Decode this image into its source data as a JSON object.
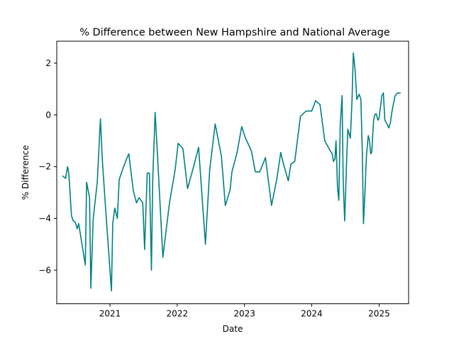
{
  "chart_data": {
    "type": "line",
    "title": "% Difference between New Hampshire and National Average",
    "xlabel": "Date",
    "ylabel": "% Difference",
    "x_ticks": [
      "2021",
      "2022",
      "2023",
      "2024",
      "2025"
    ],
    "y_ticks": [
      -6,
      -4,
      -2,
      0,
      2
    ],
    "xlim": [
      "2020-03-18",
      "2025-06-10"
    ],
    "ylim": [
      -7.3,
      2.85
    ],
    "grid": false,
    "legend": "none",
    "line_color": "#008080",
    "series": [
      {
        "x": [
          "2020-04-18",
          "2020-05-05",
          "2020-05-16",
          "2020-05-23",
          "2020-06-06",
          "2020-06-16",
          "2020-06-27",
          "2020-07-07",
          "2020-07-15",
          "2020-08-20",
          "2020-08-27",
          "2020-09-12",
          "2020-09-19",
          "2020-10-02",
          "2020-10-13",
          "2020-10-24",
          "2020-11-10",
          "2020-11-21",
          "2020-12-09",
          "2021-01-09",
          "2021-01-16",
          "2021-01-27",
          "2021-02-10",
          "2021-02-20",
          "2021-03-06",
          "2021-04-01",
          "2021-04-13",
          "2021-05-08",
          "2021-05-25",
          "2021-06-08",
          "2021-06-28",
          "2021-07-08",
          "2021-07-22",
          "2021-08-03",
          "2021-08-14",
          "2021-08-21",
          "2021-09-03",
          "2021-09-14",
          "2021-10-15",
          "2021-11-20",
          "2021-12-21",
          "2022-01-06",
          "2022-02-01",
          "2022-02-26",
          "2022-03-27",
          "2022-04-27",
          "2022-06-03",
          "2022-06-26",
          "2022-07-26",
          "2022-08-29",
          "2022-09-19",
          "2022-10-15",
          "2022-10-25",
          "2022-11-22",
          "2022-12-17",
          "2023-01-04",
          "2023-02-08",
          "2023-03-01",
          "2023-03-25",
          "2023-04-25",
          "2023-05-28",
          "2023-06-25",
          "2023-07-17",
          "2023-07-30",
          "2023-08-27",
          "2023-09-10",
          "2023-10-01",
          "2023-11-01",
          "2023-12-01",
          "2024-01-01",
          "2024-01-22",
          "2024-02-15",
          "2024-03-12",
          "2024-04-12",
          "2024-04-21",
          "2024-04-28",
          "2024-05-06",
          "2024-05-12",
          "2024-05-20",
          "2024-05-27",
          "2024-06-04",
          "2024-06-14",
          "2024-06-20",
          "2024-06-28",
          "2024-07-08",
          "2024-07-15",
          "2024-07-21",
          "2024-07-29",
          "2024-08-07",
          "2024-08-14",
          "2024-08-24",
          "2024-09-02",
          "2024-09-15",
          "2024-09-24",
          "2024-10-02",
          "2024-10-08",
          "2024-10-15",
          "2024-10-24",
          "2024-11-03",
          "2024-11-10",
          "2024-11-16",
          "2024-11-22",
          "2024-12-02",
          "2024-12-08",
          "2024-12-16",
          "2024-12-25",
          "2024-12-31",
          "2025-01-08",
          "2025-01-16",
          "2025-01-24",
          "2025-02-01",
          "2025-02-09",
          "2025-02-16",
          "2025-02-23",
          "2025-03-03",
          "2025-03-11",
          "2025-03-19",
          "2025-03-27",
          "2025-04-04",
          "2025-04-12",
          "2025-04-20",
          "2025-04-28"
        ],
        "y": [
          -2.35,
          -2.45,
          -2.0,
          -2.3,
          -3.9,
          -4.1,
          -4.15,
          -4.4,
          -4.2,
          -5.8,
          -2.6,
          -3.2,
          -6.7,
          -4.0,
          -3.3,
          -2.6,
          -0.15,
          -1.8,
          -3.7,
          -6.8,
          -4.2,
          -3.6,
          -4.0,
          -2.5,
          -2.2,
          -1.7,
          -1.5,
          -2.95,
          -3.4,
          -3.2,
          -3.4,
          -5.2,
          -2.25,
          -2.25,
          -6.0,
          -2.5,
          0.1,
          -1.3,
          -5.5,
          -3.4,
          -2.1,
          -1.1,
          -1.3,
          -2.85,
          -2.1,
          -1.25,
          -5.0,
          -2.15,
          -0.35,
          -1.6,
          -3.5,
          -2.9,
          -2.2,
          -1.45,
          -0.45,
          -0.85,
          -1.4,
          -2.2,
          -2.2,
          -1.65,
          -3.5,
          -2.5,
          -1.45,
          -1.85,
          -2.55,
          -1.9,
          -1.8,
          -0.05,
          0.15,
          0.15,
          0.55,
          0.4,
          -1.0,
          -1.4,
          -1.5,
          -1.8,
          -1.7,
          -1.0,
          -2.8,
          -3.3,
          -0.4,
          0.75,
          -2.6,
          -4.1,
          -1.9,
          -0.55,
          -0.7,
          -0.9,
          0.6,
          2.4,
          1.7,
          0.6,
          0.8,
          0.6,
          -1.5,
          -4.2,
          -3.2,
          -1.6,
          -0.8,
          -1.0,
          -1.5,
          -1.45,
          -0.2,
          0.0,
          0.05,
          -0.2,
          -0.15,
          0.3,
          0.75,
          0.85,
          -0.2,
          -0.3,
          -0.4,
          -0.5,
          -0.3,
          0.1,
          0.4,
          0.7,
          0.8,
          0.85,
          0.85,
          0.85
        ]
      }
    ]
  }
}
